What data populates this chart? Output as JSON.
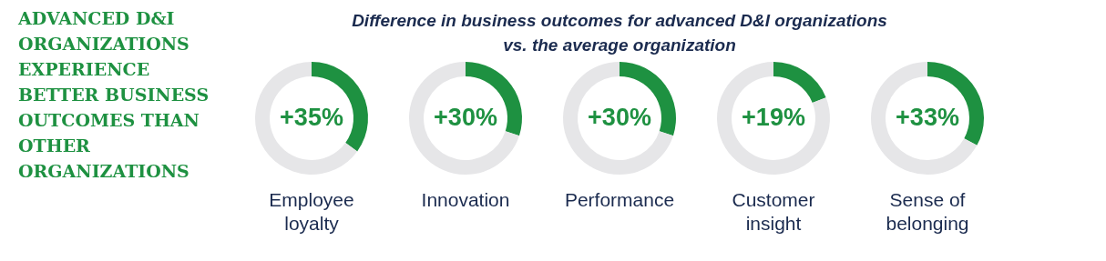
{
  "chart_data": [
    {
      "type": "other",
      "title": "ADVANCED D&I ORGANIZATIONS EXPERIENCE BETTER BUSINESS OUTCOMES THAN OTHER ORGANIZATIONS"
    },
    {
      "type": "other",
      "title": "Difference in business outcomes for advanced D&I organizations vs. the average organization"
    },
    {
      "type": "donut",
      "title": "Employee loyalty",
      "categories": [
        null,
        null
      ],
      "values": [
        35,
        65
      ],
      "colors": [
        "#1e9141",
        "#e6e6e8"
      ],
      "value_labels": [
        "+35%",
        null
      ]
    },
    {
      "type": "donut",
      "title": "Innovation",
      "categories": [
        null,
        null
      ],
      "values": [
        30,
        70
      ],
      "colors": [
        "#1e9141",
        "#e6e6e8"
      ],
      "value_labels": [
        "+30%",
        null
      ]
    },
    {
      "type": "donut",
      "title": "Performance",
      "categories": [
        null,
        null
      ],
      "values": [
        30,
        70
      ],
      "colors": [
        "#1e9141",
        "#e6e6e8"
      ],
      "value_labels": [
        "+30%",
        null
      ]
    },
    {
      "type": "donut",
      "title": "Customer insight",
      "categories": [
        null,
        null
      ],
      "values": [
        19,
        81
      ],
      "colors": [
        "#1e9141",
        "#e6e6e8"
      ],
      "value_labels": [
        "+19%",
        null
      ]
    },
    {
      "type": "donut",
      "title": "Sense of belonging",
      "categories": [
        null,
        null
      ],
      "values": [
        33,
        67
      ],
      "colors": [
        "#1e9141",
        "#e6e6e8"
      ],
      "value_labels": [
        "+33%",
        null
      ]
    }
  ]
}
